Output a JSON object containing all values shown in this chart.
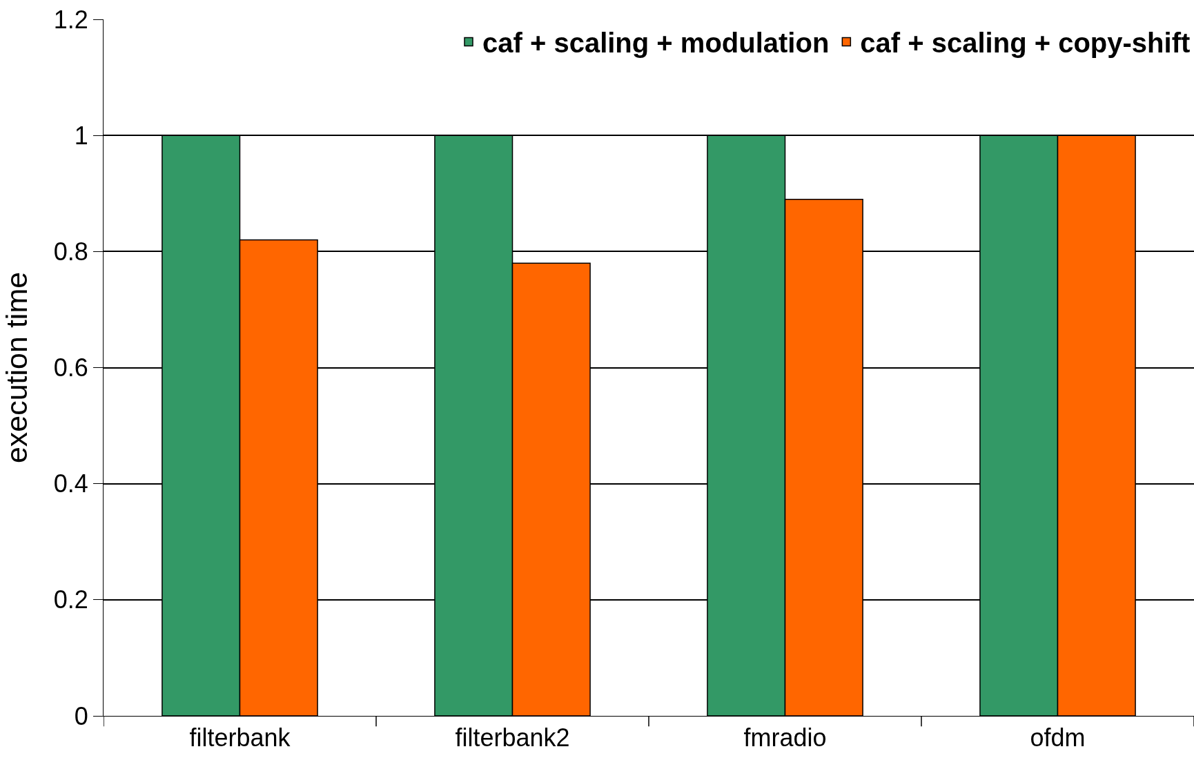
{
  "chart_data": {
    "type": "bar",
    "ylabel": "execution time",
    "categories": [
      "filterbank",
      "filterbank2",
      "fmradio",
      "ofdm"
    ],
    "series": [
      {
        "name": "caf + scaling + modulation",
        "color": "#339966",
        "values": [
          1,
          1,
          1,
          1
        ]
      },
      {
        "name": "caf + scaling + copy-shift",
        "color": "#ff6600",
        "values": [
          0.82,
          0.78,
          0.89,
          1
        ]
      }
    ],
    "ylim": [
      0,
      1.2
    ],
    "yticks": [
      0,
      0.2,
      0.4,
      0.6,
      0.8,
      1,
      1.2
    ],
    "grid": "y",
    "legend": "top right"
  }
}
